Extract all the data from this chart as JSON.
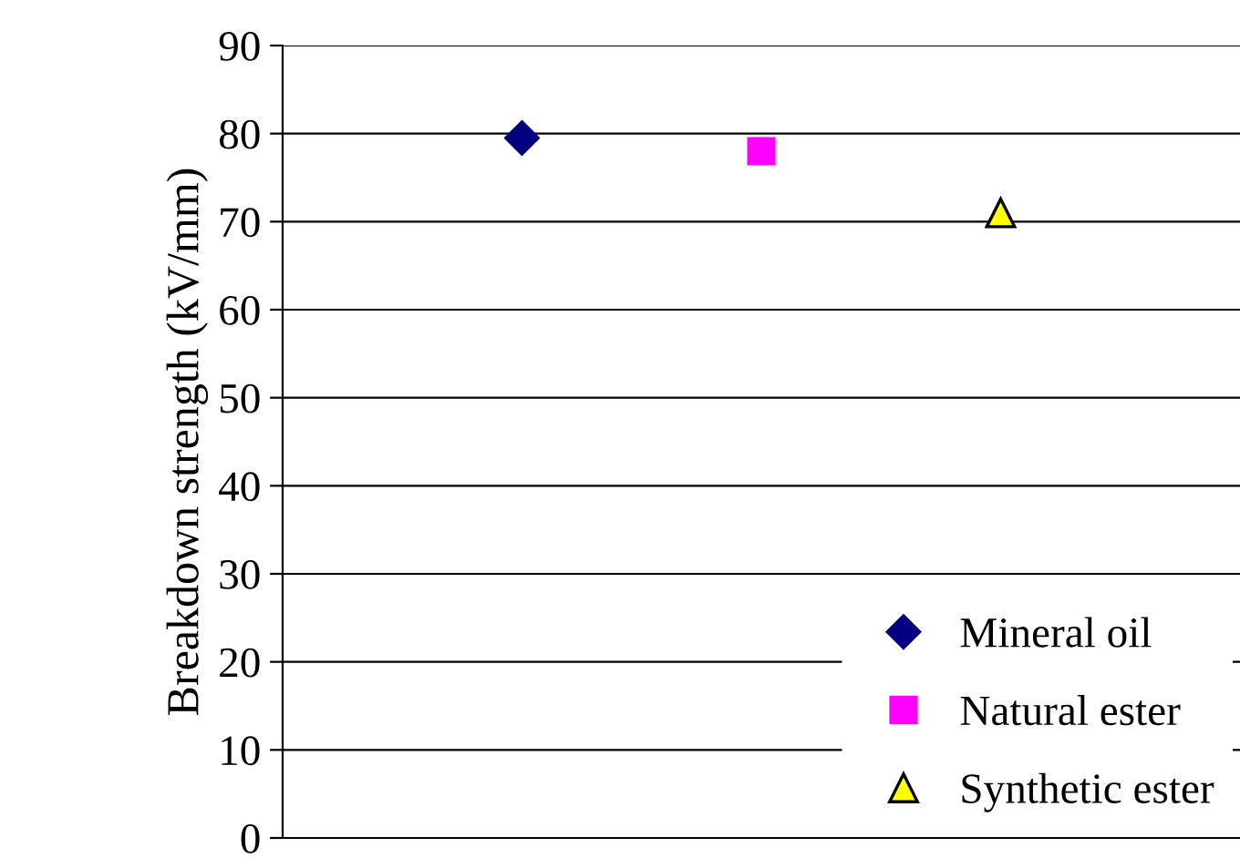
{
  "chart_data": {
    "type": "scatter",
    "ylabel": "Breakdown strength (kV/mm)",
    "categories": [
      null,
      null,
      null
    ],
    "series": [
      {
        "name": "Mineral oil",
        "color": "#000080",
        "marker": "diamond",
        "values": [
          79.5,
          null,
          null
        ]
      },
      {
        "name": "Natural ester",
        "color": "#ff00ff",
        "marker": "square",
        "values": [
          null,
          78,
          null
        ]
      },
      {
        "name": "Synthetic ester",
        "color": "#ffff00",
        "marker": "triangle",
        "values": [
          null,
          null,
          71
        ]
      }
    ],
    "ylim": [
      0,
      90
    ],
    "yticks": [
      0,
      10,
      20,
      30,
      40,
      50,
      60,
      70,
      80,
      90
    ],
    "grid": "y",
    "legend": "bottom right"
  }
}
